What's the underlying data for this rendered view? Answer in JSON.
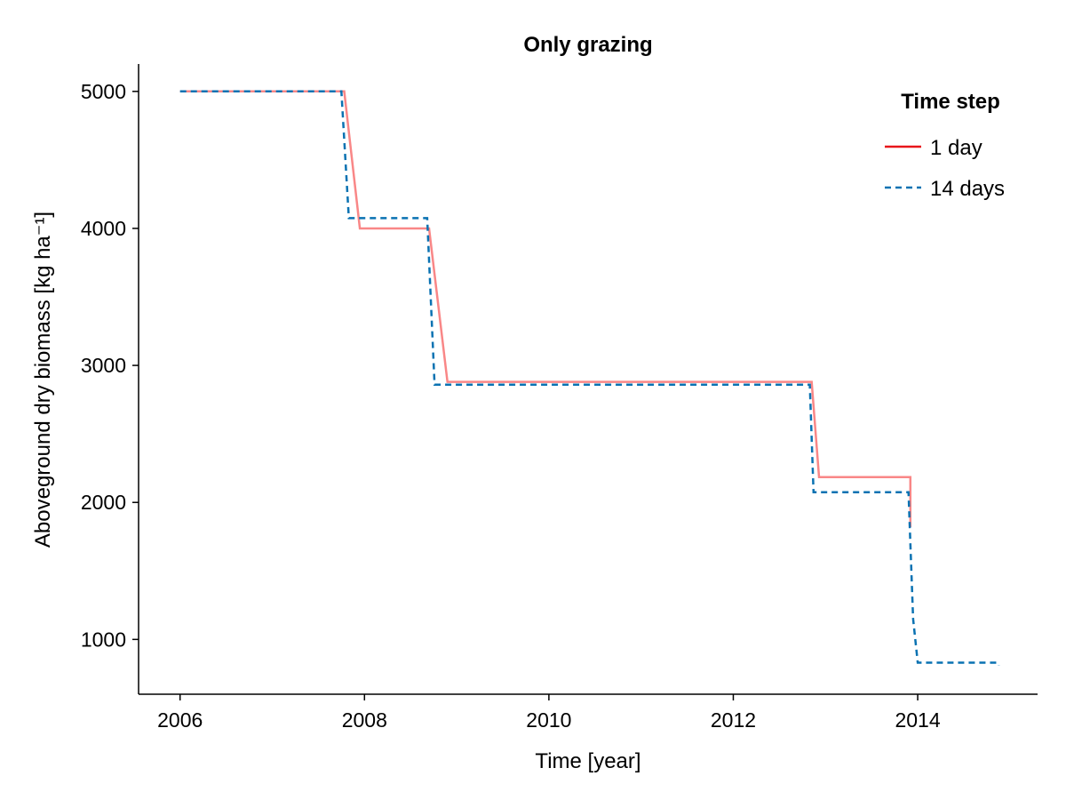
{
  "chart_data": {
    "type": "line",
    "title": "Only grazing",
    "xlabel": "Time [year]",
    "ylabel": "Aboveground dry biomass [kg ha⁻¹]",
    "xlim": [
      2005.55,
      2015.3
    ],
    "ylim": [
      600,
      5200
    ],
    "xticks": [
      2006,
      2008,
      2010,
      2012,
      2014
    ],
    "xtick_labels": [
      "2006",
      "2008",
      "2010",
      "2012",
      "2014"
    ],
    "yticks": [
      1000,
      2000,
      3000,
      4000,
      5000
    ],
    "ytick_labels": [
      "1000",
      "2000",
      "3000",
      "4000",
      "5000"
    ],
    "grid": false,
    "legend": {
      "title": "Time step",
      "position": "top-right"
    },
    "series": [
      {
        "name": "1 day",
        "color": "#f98787",
        "legend_color": "#e8161a",
        "style": "solid",
        "x": [
          2006.0,
          2007.78,
          2007.95,
          2008.7,
          2008.9,
          2012.85,
          2012.93,
          2013.92,
          2013.92
        ],
        "y": [
          5000,
          5000,
          4000,
          4000,
          2880,
          2880,
          2185,
          2185,
          1820
        ]
      },
      {
        "name": "14 days",
        "color": "#0a72b2",
        "style": "dashed",
        "x": [
          2006.0,
          2007.75,
          2007.83,
          2008.68,
          2008.76,
          2012.83,
          2012.87,
          2013.9,
          2013.95,
          2014.0,
          2014.87,
          2014.88
        ],
        "y": [
          5000,
          5000,
          4075,
          4075,
          2860,
          2860,
          2075,
          2075,
          1150,
          830,
          830,
          810
        ]
      }
    ]
  }
}
